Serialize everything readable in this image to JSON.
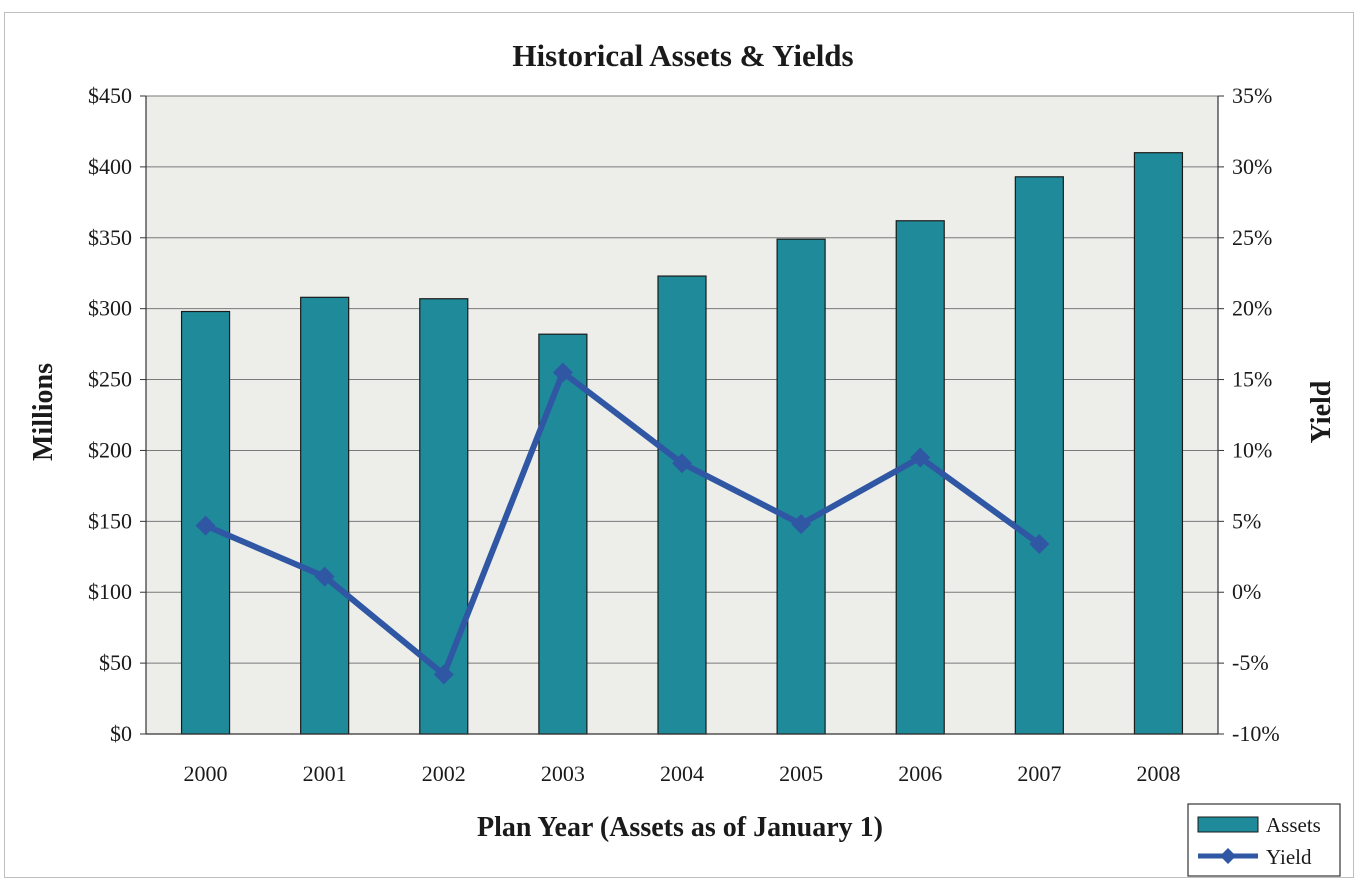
{
  "chart_data": {
    "type": "bar",
    "title": "Historical Assets & Yields",
    "xlabel": "Plan Year (Assets as of January 1)",
    "ylabel": "Millions",
    "y2label": "Yield",
    "categories": [
      "2000",
      "2001",
      "2002",
      "2003",
      "2004",
      "2005",
      "2006",
      "2007",
      "2008"
    ],
    "series": [
      {
        "name": "Assets",
        "type": "bar",
        "axis": "left",
        "values": [
          298,
          308,
          307,
          282,
          323,
          349,
          362,
          393,
          410
        ]
      },
      {
        "name": "Yield",
        "type": "line",
        "axis": "right",
        "values": [
          4.7,
          1.1,
          -5.8,
          15.5,
          9.1,
          4.8,
          9.5,
          3.4,
          null
        ]
      }
    ],
    "ylim": [
      0,
      450
    ],
    "y2lim": [
      -10,
      35
    ],
    "yticks": [
      "$0",
      "$50",
      "$100",
      "$150",
      "$200",
      "$250",
      "$300",
      "$350",
      "$400",
      "$450"
    ],
    "y2ticks": [
      "-10%",
      "-5%",
      "0%",
      "5%",
      "10%",
      "15%",
      "20%",
      "25%",
      "30%",
      "35%"
    ],
    "grid": true,
    "legend_position": "bottom-right",
    "colors": {
      "bar": "#1f8b9a",
      "line": "#2f57a4",
      "plot_bg": "#ededea",
      "grid": "#7a7a7a"
    }
  }
}
